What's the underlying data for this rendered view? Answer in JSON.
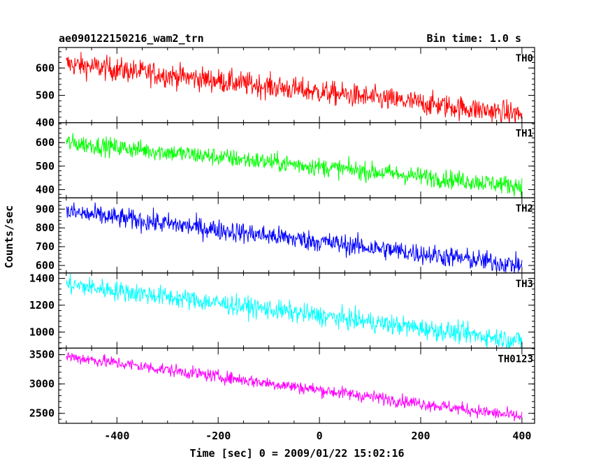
{
  "header": {
    "title": "ae090122150216_wam2_trn",
    "bin_time": "Bin time: 1.0 s"
  },
  "axes": {
    "xlabel": "Time [sec] 0 = 2009/01/22 15:02:16",
    "ylabel": "Counts/sec"
  },
  "chart_data": {
    "type": "line",
    "title": "ae090122150216_wam2_trn",
    "subtitle": "Bin time: 1.0 s",
    "xlabel": "Time [sec] 0 = 2009/01/22 15:02:16",
    "ylabel": "Counts/sec",
    "xlim": [
      -515,
      425
    ],
    "x_range_data": [
      -500,
      400
    ],
    "bin_time_s": 1.0,
    "x_ticks": [
      -400,
      -200,
      0,
      200,
      400
    ],
    "grid": false,
    "legend": "none",
    "panels": [
      {
        "name": "TH0",
        "color": "#ff0000",
        "ylim": [
          400,
          675
        ],
        "yticks": [
          400,
          500,
          600
        ],
        "start": 615,
        "end": 430,
        "noise": 22
      },
      {
        "name": "TH1",
        "color": "#00ff00",
        "ylim": [
          365,
          685
        ],
        "yticks": [
          400,
          500,
          600
        ],
        "start": 600,
        "end": 415,
        "noise": 20
      },
      {
        "name": "TH2",
        "color": "#0000ff",
        "ylim": [
          560,
          960
        ],
        "yticks": [
          600,
          700,
          800,
          900
        ],
        "start": 885,
        "end": 600,
        "noise": 28
      },
      {
        "name": "TH3",
        "color": "#00ffff",
        "ylim": [
          880,
          1440
        ],
        "yticks": [
          1000,
          1200,
          1400
        ],
        "start": 1355,
        "end": 935,
        "noise": 38
      },
      {
        "name": "TH0123",
        "color": "#ff00ff",
        "ylim": [
          2330,
          3610
        ],
        "yticks": [
          2500,
          3000,
          3500
        ],
        "start": 3470,
        "end": 2440,
        "noise": 55
      }
    ]
  }
}
